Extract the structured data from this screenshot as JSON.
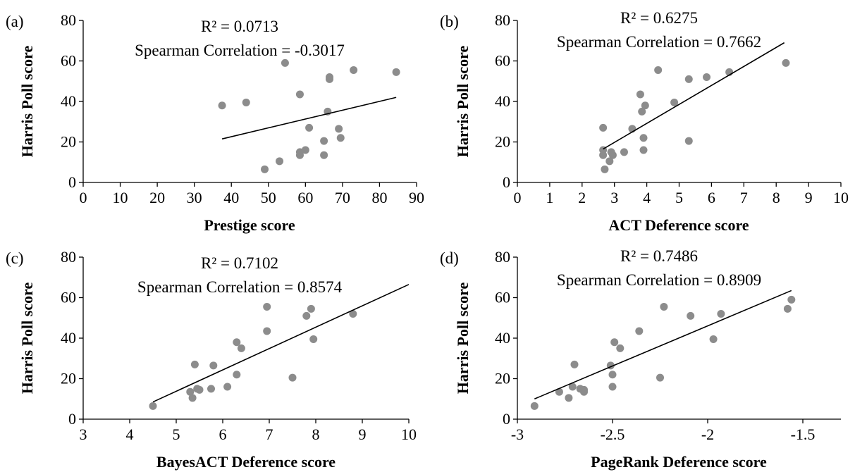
{
  "colors": {
    "points": "#8c8c8c",
    "trendline": "#000000",
    "axis": "#000000"
  },
  "chart_data": [
    {
      "type": "scatter",
      "panel_label": "(a)",
      "annotations": [
        "R² = 0.0713",
        "Spearman Correlation = -0.3017"
      ],
      "xlabel": "Prestige score",
      "ylabel": "Harris Poll score",
      "xlim": [
        0,
        90
      ],
      "ylim": [
        0,
        80
      ],
      "xticks": [
        0,
        10,
        20,
        30,
        40,
        50,
        60,
        70,
        80,
        90
      ],
      "xtick_labels": [
        "0",
        "10",
        "20",
        "30",
        "40",
        "50",
        "60",
        "70",
        "80",
        "90"
      ],
      "yticks": [
        0,
        20,
        40,
        60,
        80
      ],
      "ytick_labels": [
        "0",
        "20",
        "40",
        "60",
        "80"
      ],
      "points": [
        [
          37.5,
          38
        ],
        [
          44,
          39.5
        ],
        [
          49,
          6.5
        ],
        [
          53,
          10.5
        ],
        [
          54.5,
          59
        ],
        [
          58.5,
          43.5
        ],
        [
          58.5,
          13.5
        ],
        [
          58.5,
          15
        ],
        [
          60,
          16
        ],
        [
          61,
          27
        ],
        [
          65,
          20.5
        ],
        [
          65,
          13.5
        ],
        [
          66,
          35
        ],
        [
          66.5,
          52
        ],
        [
          66.5,
          51
        ],
        [
          69,
          26.5
        ],
        [
          69.5,
          22
        ],
        [
          73,
          55.5
        ],
        [
          84.5,
          54.5
        ]
      ],
      "trendline": [
        [
          37.5,
          21.5
        ],
        [
          84.5,
          42
        ]
      ]
    },
    {
      "type": "scatter",
      "panel_label": "(b)",
      "annotations": [
        "R² = 0.6275",
        "Spearman Correlation = 0.7662"
      ],
      "xlabel": "ACT Deference score",
      "ylabel": "Harris Poll score",
      "xlim": [
        0,
        10
      ],
      "ylim": [
        0,
        80
      ],
      "xticks": [
        0,
        1,
        2,
        3,
        4,
        5,
        6,
        7,
        8,
        9,
        10
      ],
      "xtick_labels": [
        "0",
        "1",
        "2",
        "3",
        "4",
        "5",
        "6",
        "7",
        "8",
        "9",
        "10"
      ],
      "yticks": [
        0,
        20,
        40,
        60,
        80
      ],
      "ytick_labels": [
        "0",
        "20",
        "40",
        "60",
        "80"
      ],
      "points": [
        [
          2.65,
          27
        ],
        [
          2.65,
          16
        ],
        [
          2.65,
          13.5
        ],
        [
          2.7,
          6.5
        ],
        [
          2.85,
          10.5
        ],
        [
          2.9,
          15
        ],
        [
          2.95,
          13.5
        ],
        [
          3.3,
          15
        ],
        [
          3.55,
          26.5
        ],
        [
          3.8,
          43.5
        ],
        [
          3.85,
          35
        ],
        [
          3.9,
          22
        ],
        [
          3.9,
          16
        ],
        [
          3.95,
          38
        ],
        [
          4.35,
          55.5
        ],
        [
          4.85,
          39.5
        ],
        [
          5.3,
          51
        ],
        [
          5.3,
          20.5
        ],
        [
          5.85,
          52
        ],
        [
          6.55,
          54.5
        ],
        [
          8.3,
          59
        ]
      ],
      "trendline": [
        [
          2.65,
          16.5
        ],
        [
          8.25,
          69
        ]
      ]
    },
    {
      "type": "scatter",
      "panel_label": "(c)",
      "annotations": [
        "R² = 0.7102",
        "Spearman Correlation = 0.8574"
      ],
      "xlabel": "BayesACT Deference score",
      "ylabel": "Harris Poll score",
      "xlim": [
        3,
        10
      ],
      "ylim": [
        0,
        80
      ],
      "xticks": [
        3,
        4,
        5,
        6,
        7,
        8,
        9,
        10
      ],
      "xtick_labels": [
        "3",
        "4",
        "5",
        "6",
        "7",
        "8",
        "9",
        "10"
      ],
      "yticks": [
        0,
        20,
        40,
        60,
        80
      ],
      "ytick_labels": [
        "0",
        "20",
        "40",
        "60",
        "80"
      ],
      "points": [
        [
          4.5,
          6.5
        ],
        [
          5.3,
          13.5
        ],
        [
          5.35,
          10.5
        ],
        [
          5.4,
          27
        ],
        [
          5.45,
          15
        ],
        [
          5.5,
          14.5
        ],
        [
          5.75,
          15
        ],
        [
          5.8,
          26.5
        ],
        [
          6.1,
          16
        ],
        [
          6.3,
          38
        ],
        [
          6.3,
          22
        ],
        [
          6.4,
          35
        ],
        [
          6.95,
          55.5
        ],
        [
          6.95,
          43.5
        ],
        [
          7.5,
          20.5
        ],
        [
          7.8,
          51
        ],
        [
          7.9,
          54.5
        ],
        [
          7.95,
          39.5
        ],
        [
          8.8,
          52
        ]
      ],
      "trendline": [
        [
          4.5,
          8.5
        ],
        [
          10,
          66.5
        ]
      ]
    },
    {
      "type": "scatter",
      "panel_label": "(d)",
      "annotations": [
        "R² = 0.7486",
        "Spearman Correlation = 0.8909"
      ],
      "xlabel": "PageRank Deference score",
      "ylabel": "Harris Poll score",
      "xlim": [
        -3,
        -1.3
      ],
      "ylim": [
        0,
        80
      ],
      "xticks": [
        -3,
        -2.5,
        -2,
        -1.5
      ],
      "xtick_labels": [
        "-3",
        "-2.5",
        "-2",
        "-1.5"
      ],
      "yticks": [
        0,
        20,
        40,
        60,
        80
      ],
      "ytick_labels": [
        "0",
        "20",
        "40",
        "60",
        "80"
      ],
      "points": [
        [
          -2.91,
          6.5
        ],
        [
          -2.78,
          13.5
        ],
        [
          -2.73,
          10.5
        ],
        [
          -2.71,
          16
        ],
        [
          -2.7,
          27
        ],
        [
          -2.67,
          15
        ],
        [
          -2.65,
          14.5
        ],
        [
          -2.65,
          13.5
        ],
        [
          -2.51,
          26.5
        ],
        [
          -2.5,
          22
        ],
        [
          -2.5,
          16
        ],
        [
          -2.49,
          38
        ],
        [
          -2.46,
          35
        ],
        [
          -2.36,
          43.5
        ],
        [
          -2.25,
          20.5
        ],
        [
          -2.23,
          55.5
        ],
        [
          -2.09,
          51
        ],
        [
          -1.97,
          39.5
        ],
        [
          -1.93,
          52
        ],
        [
          -1.58,
          54.5
        ],
        [
          -1.56,
          59
        ]
      ],
      "trendline": [
        [
          -2.91,
          10
        ],
        [
          -1.56,
          63.5
        ]
      ]
    }
  ]
}
